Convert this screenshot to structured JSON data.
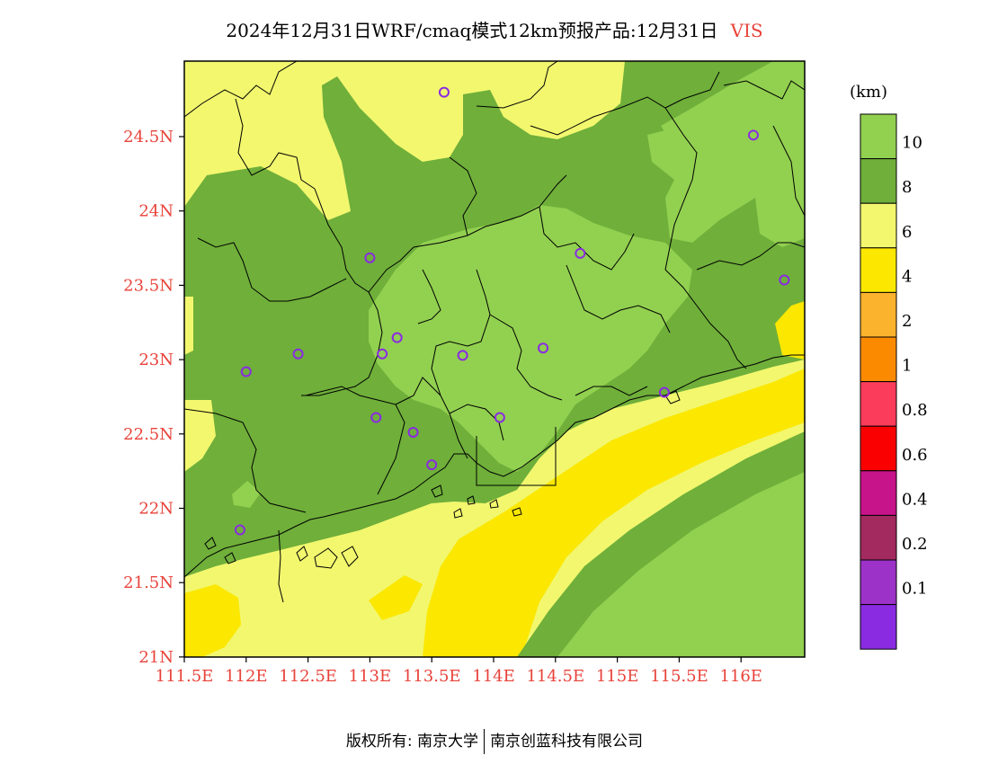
{
  "title": {
    "main": "2024年12月31日WRF/cmaq模式12km预报产品:12月31日",
    "variable": "VIS"
  },
  "axes": {
    "x_ticks": [
      "111.5E",
      "112E",
      "112.5E",
      "113E",
      "113.5E",
      "114E",
      "114.5E",
      "115E",
      "115.5E",
      "116E"
    ],
    "y_ticks": [
      "24.5N",
      "24N",
      "23.5N",
      "23N",
      "22.5N",
      "22N",
      "21.5N",
      "21N"
    ]
  },
  "colorbar": {
    "unit": "(km)",
    "labels": [
      "10",
      "8",
      "6",
      "4",
      "2",
      "1",
      "0.8",
      "0.6",
      "0.4",
      "0.2",
      "0.1"
    ],
    "colors": [
      "#92d050",
      "#6faf3a",
      "#f2f76e",
      "#fbe700",
      "#fbb32e",
      "#fb8a00",
      "#fb3c5a",
      "#fb0000",
      "#c8148a",
      "#a22a5e",
      "#9d32c8",
      "#8a2be2"
    ]
  },
  "map": {
    "colors": {
      "light_green": "#92d050",
      "dark_green": "#6faf3a",
      "light_yellow": "#f2f76e",
      "yellow": "#fbe700",
      "station_marker": "#8a2be2",
      "boundary": "#000000"
    },
    "stations": [
      {
        "lon": 113.6,
        "lat": 24.82
      },
      {
        "lon": 116.1,
        "lat": 24.53
      },
      {
        "lon": 113.0,
        "lat": 23.7
      },
      {
        "lon": 114.7,
        "lat": 23.73
      },
      {
        "lon": 116.35,
        "lat": 23.55
      },
      {
        "lon": 113.22,
        "lat": 23.16
      },
      {
        "lon": 112.42,
        "lat": 23.05
      },
      {
        "lon": 113.1,
        "lat": 23.05
      },
      {
        "lon": 113.75,
        "lat": 23.04
      },
      {
        "lon": 114.4,
        "lat": 23.09
      },
      {
        "lon": 112.0,
        "lat": 22.93
      },
      {
        "lon": 115.38,
        "lat": 22.79
      },
      {
        "lon": 113.05,
        "lat": 22.62
      },
      {
        "lon": 114.05,
        "lat": 22.62
      },
      {
        "lon": 113.35,
        "lat": 22.52
      },
      {
        "lon": 113.5,
        "lat": 22.3
      },
      {
        "lon": 111.95,
        "lat": 21.86
      }
    ]
  },
  "footer": {
    "left": "版权所有: 南京大学",
    "right": "南京创蓝科技有限公司"
  }
}
